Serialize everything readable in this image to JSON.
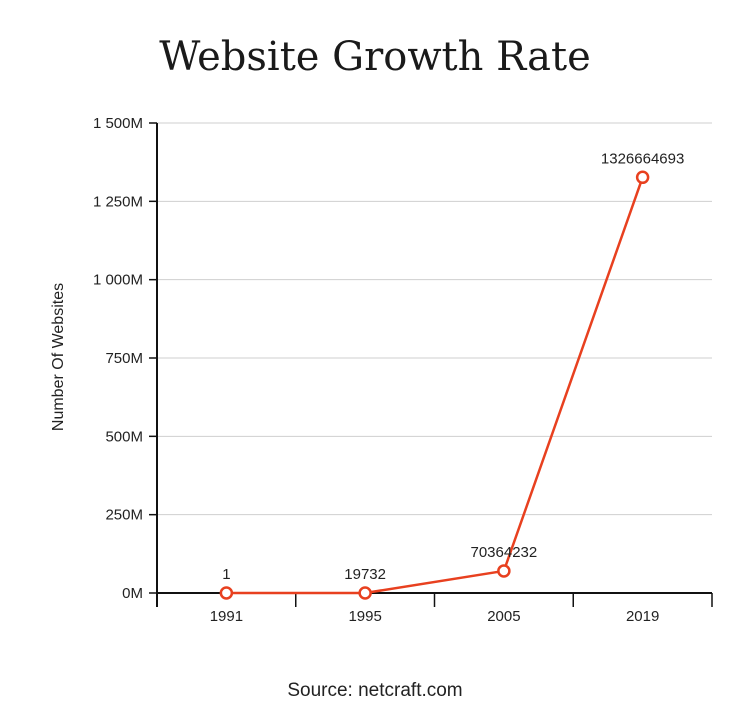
{
  "colors": {
    "line": "#e8401f",
    "grid": "#cfcfcf",
    "axis": "#111111"
  },
  "chart_data": {
    "type": "line",
    "title": "Website Growth Rate",
    "xlabel": "",
    "ylabel": "Number Of Websites",
    "categories": [
      "1991",
      "1995",
      "2005",
      "2019"
    ],
    "series": [
      {
        "values": [
          1,
          19732,
          70364232,
          1326664693
        ],
        "data_labels": [
          "1",
          "19732",
          "70364232",
          "1326664693"
        ]
      }
    ],
    "ylim": [
      0,
      1500000000
    ],
    "yticks": [
      0,
      250000000,
      500000000,
      750000000,
      1000000000,
      1250000000,
      1500000000
    ],
    "ytick_labels": [
      "0M",
      "250M",
      "500M",
      "750M",
      "1 000M",
      "1 250M",
      "1 500M"
    ],
    "grid": "horizontal",
    "source": "Source: netcraft.com"
  }
}
